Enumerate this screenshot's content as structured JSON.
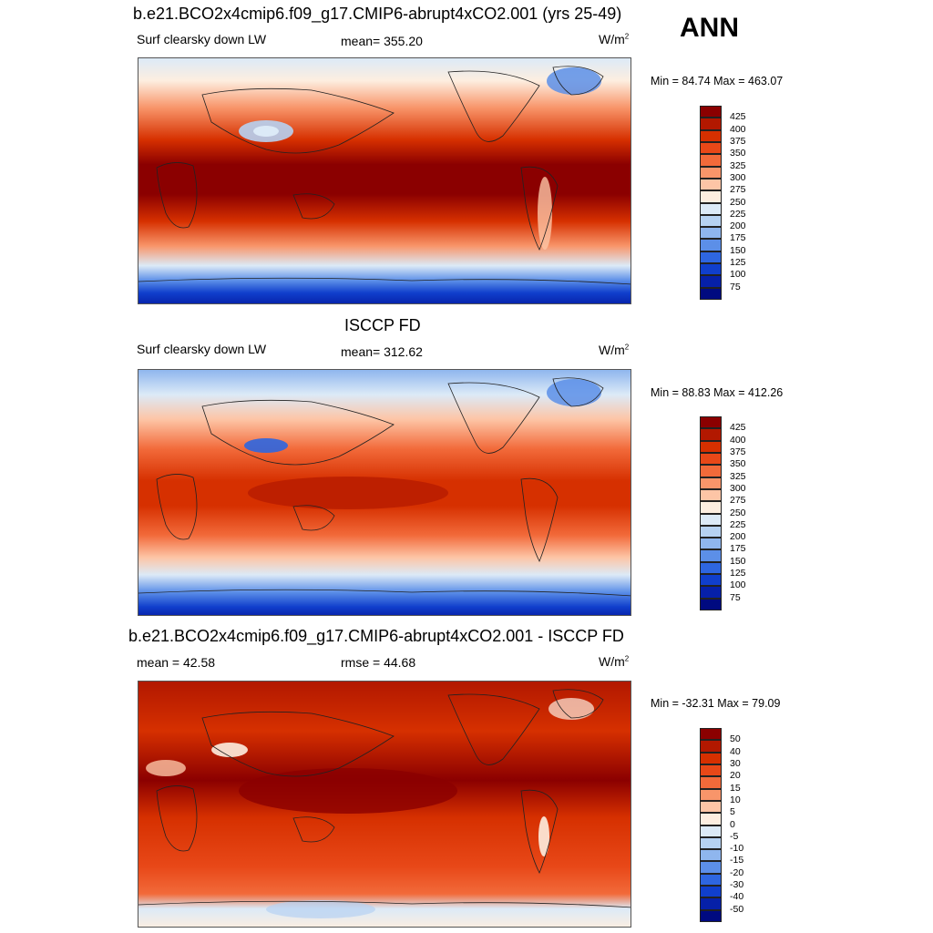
{
  "season": "ANN",
  "panels": [
    {
      "title": "b.e21.BCO2x4cmip6.f09_g17.CMIP6-abrupt4xCO2.001 (yrs 25-49)",
      "left_label": "Surf clearsky down LW",
      "center_label": "mean= 355.20",
      "units_base": "W/m",
      "units_exp": "2",
      "minmax": "Min =  84.74 Max = 463.07",
      "colorbar": {
        "colors": [
          "#8b0000",
          "#b21800",
          "#d63000",
          "#e84818",
          "#f26a3a",
          "#f8956a",
          "#fdc5a6",
          "#fdeee0",
          "#dceaf7",
          "#b6d2f2",
          "#8fb6ee",
          "#5c8fe8",
          "#2e66e0",
          "#103fcc",
          "#0620a8",
          "#000a80"
        ],
        "ticks": [
          "425",
          "400",
          "375",
          "350",
          "325",
          "300",
          "275",
          "250",
          "225",
          "200",
          "175",
          "150",
          "125",
          "100",
          "75"
        ]
      }
    },
    {
      "title": "ISCCP FD",
      "left_label": "Surf clearsky down LW",
      "center_label": "mean= 312.62",
      "units_base": "W/m",
      "units_exp": "2",
      "minmax": "Min =  88.83 Max = 412.26",
      "colorbar": {
        "colors": [
          "#8b0000",
          "#b21800",
          "#d63000",
          "#e84818",
          "#f26a3a",
          "#f8956a",
          "#fdc5a6",
          "#fdeee0",
          "#dceaf7",
          "#b6d2f2",
          "#8fb6ee",
          "#5c8fe8",
          "#2e66e0",
          "#103fcc",
          "#0620a8",
          "#000a80"
        ],
        "ticks": [
          "425",
          "400",
          "375",
          "350",
          "325",
          "300",
          "275",
          "250",
          "225",
          "200",
          "175",
          "150",
          "125",
          "100",
          "75"
        ]
      }
    },
    {
      "title": "b.e21.BCO2x4cmip6.f09_g17.CMIP6-abrupt4xCO2.001 - ISCCP FD",
      "left_label": "mean =  42.58",
      "center_label": "rmse =  44.68",
      "units_base": "W/m",
      "units_exp": "2",
      "minmax": "Min = -32.31 Max =  79.09",
      "colorbar": {
        "colors": [
          "#8b0000",
          "#b21800",
          "#d63000",
          "#e84818",
          "#f26a3a",
          "#f8956a",
          "#fdc5a6",
          "#fdeee0",
          "#dceaf7",
          "#b6d2f2",
          "#8fb6ee",
          "#5c8fe8",
          "#2e66e0",
          "#103fcc",
          "#0620a8",
          "#000a80"
        ],
        "ticks": [
          "50",
          "40",
          "30",
          "20",
          "15",
          "10",
          "5",
          "0",
          "-5",
          "-10",
          "-15",
          "-20",
          "-30",
          "-40",
          "-50"
        ]
      }
    }
  ]
}
